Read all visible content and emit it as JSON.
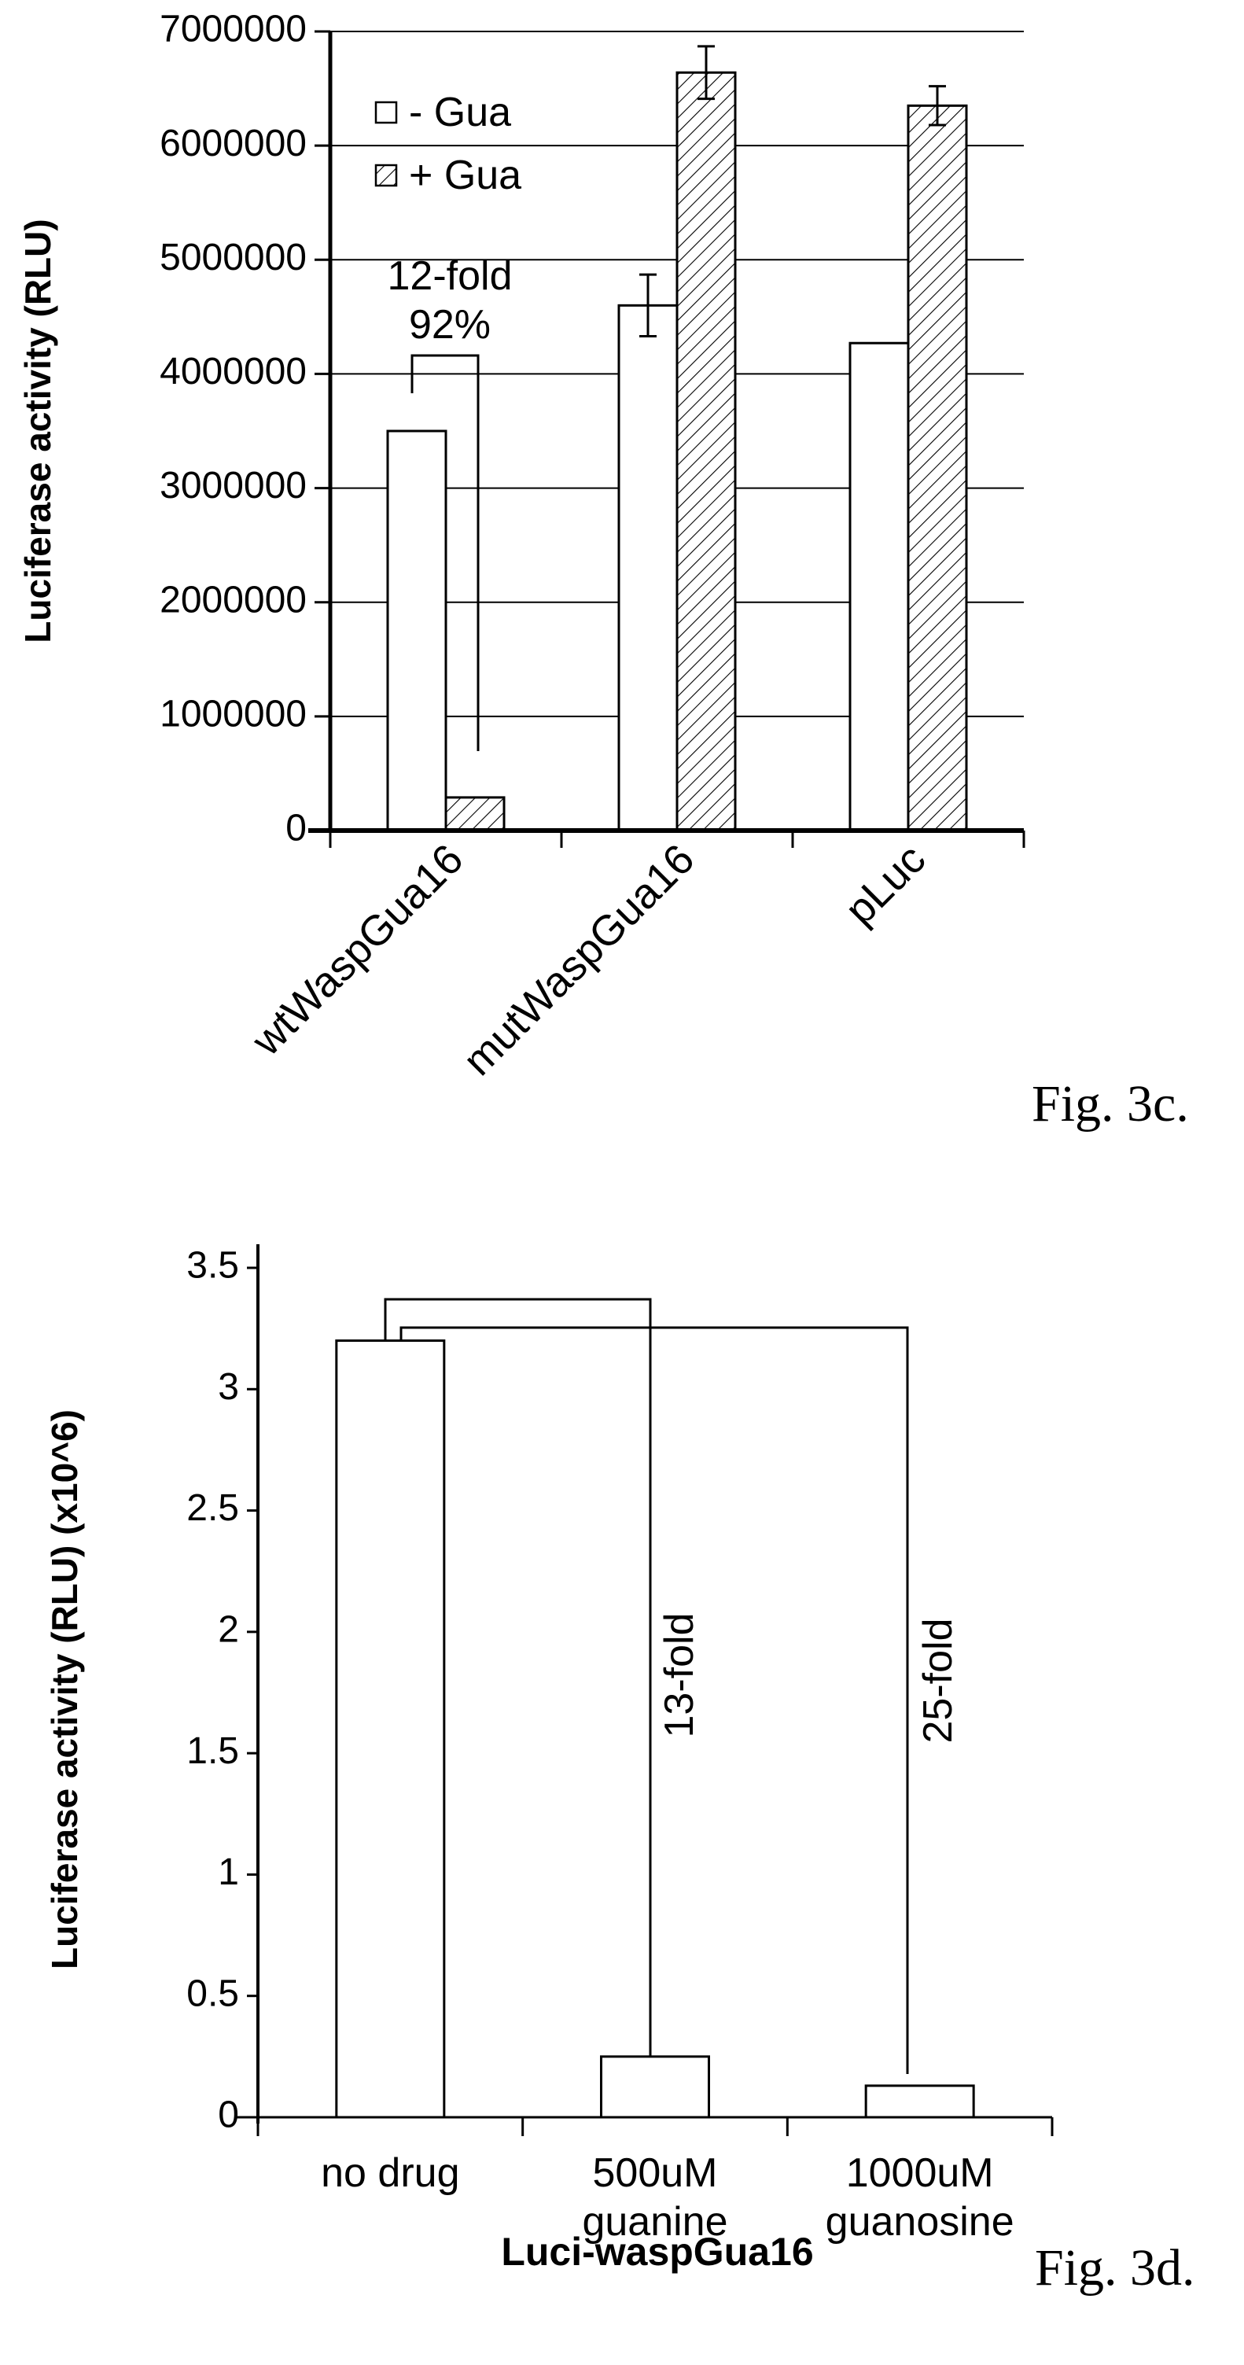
{
  "chart_data": [
    {
      "type": "bar",
      "caption": "Fig. 3c.",
      "ylabel": "Luciferase activity (RLU)",
      "xlabel": "",
      "ylim": [
        0,
        7000000
      ],
      "yticks": [
        "0",
        "1000000",
        "2000000",
        "3000000",
        "4000000",
        "5000000",
        "6000000",
        "7000000"
      ],
      "grid": true,
      "legend_position": "top-left",
      "categories": [
        "wtWaspGua16",
        "mutWaspGua16",
        "pLuc"
      ],
      "series": [
        {
          "name": "- Gua",
          "pattern": "open",
          "values": [
            3500000,
            4600000,
            4270000
          ],
          "errors": [
            0,
            270000,
            0
          ]
        },
        {
          "name": "+ Gua",
          "pattern": "hatched",
          "values": [
            290000,
            6640000,
            6350000
          ],
          "errors": [
            0,
            230000,
            170000
          ]
        }
      ],
      "annotations": [
        {
          "text": "12-fold",
          "category": 0
        },
        {
          "text": "92%",
          "category": 0
        }
      ]
    },
    {
      "type": "bar",
      "caption": "Fig. 3d.",
      "ylabel": "Luciferase activity (RLU) (x10^6)",
      "xlabel": "Luci-waspGua16",
      "ylim": [
        0,
        3.5
      ],
      "yticks": [
        "0",
        "0.5",
        "1",
        "1.5",
        "2",
        "2.5",
        "3",
        "3.5"
      ],
      "grid": false,
      "categories": [
        [
          "no drug"
        ],
        [
          "500uM",
          "guanine"
        ],
        [
          "1000uM",
          "guanosine"
        ]
      ],
      "values": [
        3.2,
        0.25,
        0.13
      ],
      "annotations": [
        {
          "text": "13-fold",
          "from": 0,
          "to": 1
        },
        {
          "text": "25-fold",
          "from": 0,
          "to": 2
        }
      ]
    }
  ]
}
